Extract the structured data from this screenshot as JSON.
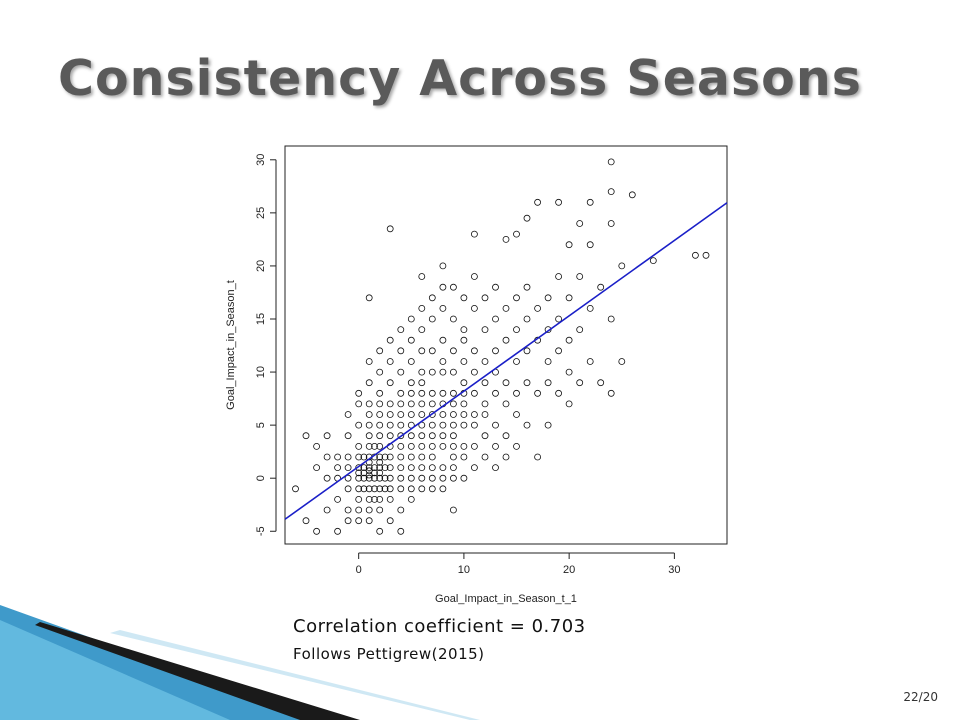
{
  "slide": {
    "title": "Consistency Across Seasons",
    "caption_correlation": "Correlation coefficient = 0.703",
    "caption_source": "Follows Pettigrew(2015)",
    "page_number": "22/20"
  },
  "colors": {
    "title": "#5a5a5a",
    "regression_line": "#1a1fc8",
    "points": "#111111",
    "decor_blue": "#2a8fc4",
    "decor_dark": "#1a1a1a"
  },
  "chart_data": {
    "type": "scatter",
    "xlabel": "Goal_Impact_in_Season_t_1",
    "ylabel": "Goal_Impact_in_Season_t",
    "xlim": [
      -7,
      35
    ],
    "ylim": [
      -6.2,
      31.3
    ],
    "xticks": [
      0,
      10,
      20,
      30
    ],
    "yticks": [
      -5,
      0,
      5,
      10,
      15,
      20,
      25,
      30
    ],
    "xtick_labels": [
      "0",
      "10",
      "20",
      "30"
    ],
    "ytick_labels": [
      "-5",
      "0",
      "5",
      "10",
      "15",
      "20",
      "25",
      "30"
    ],
    "regression": {
      "intercept": 1.1,
      "slope": 0.71
    },
    "marker": "open-circle",
    "grid": false,
    "points": [
      [
        -6,
        -1
      ],
      [
        -5,
        -4
      ],
      [
        -5,
        4
      ],
      [
        -4,
        -5
      ],
      [
        -4,
        1
      ],
      [
        -4,
        3
      ],
      [
        -3,
        -3
      ],
      [
        -3,
        0
      ],
      [
        -3,
        2
      ],
      [
        -3,
        4
      ],
      [
        -2,
        -5
      ],
      [
        -2,
        -2
      ],
      [
        -2,
        0
      ],
      [
        -2,
        1
      ],
      [
        -2,
        2
      ],
      [
        -1,
        -4
      ],
      [
        -1,
        -3
      ],
      [
        -1,
        -1
      ],
      [
        -1,
        0
      ],
      [
        -1,
        1
      ],
      [
        -1,
        2
      ],
      [
        -1,
        4
      ],
      [
        -1,
        6
      ],
      [
        0,
        -4
      ],
      [
        0,
        -3
      ],
      [
        0,
        -2
      ],
      [
        0,
        -1
      ],
      [
        0,
        0
      ],
      [
        0,
        0.5
      ],
      [
        0,
        1
      ],
      [
        0,
        2
      ],
      [
        0,
        3
      ],
      [
        0,
        5
      ],
      [
        0,
        7
      ],
      [
        0,
        8
      ],
      [
        0.5,
        -1
      ],
      [
        0.5,
        0
      ],
      [
        0.5,
        0.5
      ],
      [
        0.5,
        1
      ],
      [
        0.5,
        2
      ],
      [
        1,
        -4
      ],
      [
        1,
        -3
      ],
      [
        1,
        -2
      ],
      [
        1,
        -1
      ],
      [
        1,
        0
      ],
      [
        1,
        0.3
      ],
      [
        1,
        0.7
      ],
      [
        1,
        1
      ],
      [
        1,
        1.5
      ],
      [
        1,
        2
      ],
      [
        1,
        3
      ],
      [
        1,
        4
      ],
      [
        1,
        5
      ],
      [
        1,
        6
      ],
      [
        1,
        7
      ],
      [
        1,
        9
      ],
      [
        1,
        11
      ],
      [
        1,
        17
      ],
      [
        1.5,
        -2
      ],
      [
        1.5,
        -1
      ],
      [
        1.5,
        0
      ],
      [
        1.5,
        0.5
      ],
      [
        1.5,
        1
      ],
      [
        1.5,
        2
      ],
      [
        1.5,
        3
      ],
      [
        2,
        -5
      ],
      [
        2,
        -3
      ],
      [
        2,
        -2
      ],
      [
        2,
        -1
      ],
      [
        2,
        0
      ],
      [
        2,
        0.5
      ],
      [
        2,
        1
      ],
      [
        2,
        1.5
      ],
      [
        2,
        2
      ],
      [
        2,
        3
      ],
      [
        2,
        4
      ],
      [
        2,
        5
      ],
      [
        2,
        6
      ],
      [
        2,
        7
      ],
      [
        2,
        8
      ],
      [
        2,
        10
      ],
      [
        2,
        12
      ],
      [
        2.5,
        -1
      ],
      [
        2.5,
        0
      ],
      [
        2.5,
        1
      ],
      [
        2.5,
        2
      ],
      [
        3,
        -4
      ],
      [
        3,
        -2
      ],
      [
        3,
        -1
      ],
      [
        3,
        0
      ],
      [
        3,
        1
      ],
      [
        3,
        2
      ],
      [
        3,
        3
      ],
      [
        3,
        4
      ],
      [
        3,
        5
      ],
      [
        3,
        6
      ],
      [
        3,
        7
      ],
      [
        3,
        9
      ],
      [
        3,
        11
      ],
      [
        3,
        13
      ],
      [
        3,
        23.5
      ],
      [
        4,
        -5
      ],
      [
        4,
        -3
      ],
      [
        4,
        -1
      ],
      [
        4,
        0
      ],
      [
        4,
        1
      ],
      [
        4,
        2
      ],
      [
        4,
        3
      ],
      [
        4,
        4
      ],
      [
        4,
        5
      ],
      [
        4,
        6
      ],
      [
        4,
        7
      ],
      [
        4,
        8
      ],
      [
        4,
        10
      ],
      [
        4,
        12
      ],
      [
        4,
        14
      ],
      [
        5,
        -2
      ],
      [
        5,
        -1
      ],
      [
        5,
        0
      ],
      [
        5,
        1
      ],
      [
        5,
        2
      ],
      [
        5,
        3
      ],
      [
        5,
        4
      ],
      [
        5,
        5
      ],
      [
        5,
        6
      ],
      [
        5,
        7
      ],
      [
        5,
        8
      ],
      [
        5,
        9
      ],
      [
        5,
        11
      ],
      [
        5,
        13
      ],
      [
        5,
        15
      ],
      [
        6,
        -1
      ],
      [
        6,
        0
      ],
      [
        6,
        1
      ],
      [
        6,
        2
      ],
      [
        6,
        3
      ],
      [
        6,
        4
      ],
      [
        6,
        5
      ],
      [
        6,
        6
      ],
      [
        6,
        7
      ],
      [
        6,
        8
      ],
      [
        6,
        9
      ],
      [
        6,
        10
      ],
      [
        6,
        12
      ],
      [
        6,
        14
      ],
      [
        6,
        16
      ],
      [
        6,
        19
      ],
      [
        7,
        -1
      ],
      [
        7,
        0
      ],
      [
        7,
        1
      ],
      [
        7,
        2
      ],
      [
        7,
        3
      ],
      [
        7,
        4
      ],
      [
        7,
        5
      ],
      [
        7,
        6
      ],
      [
        7,
        7
      ],
      [
        7,
        8
      ],
      [
        7,
        10
      ],
      [
        7,
        12
      ],
      [
        7,
        15
      ],
      [
        7,
        17
      ],
      [
        8,
        -1
      ],
      [
        8,
        0
      ],
      [
        8,
        1
      ],
      [
        8,
        3
      ],
      [
        8,
        4
      ],
      [
        8,
        5
      ],
      [
        8,
        6
      ],
      [
        8,
        7
      ],
      [
        8,
        8
      ],
      [
        8,
        10
      ],
      [
        8,
        11
      ],
      [
        8,
        13
      ],
      [
        8,
        16
      ],
      [
        8,
        18
      ],
      [
        8,
        20
      ],
      [
        9,
        -3
      ],
      [
        9,
        0
      ],
      [
        9,
        1
      ],
      [
        9,
        2
      ],
      [
        9,
        3
      ],
      [
        9,
        4
      ],
      [
        9,
        5
      ],
      [
        9,
        6
      ],
      [
        9,
        7
      ],
      [
        9,
        8
      ],
      [
        9,
        10
      ],
      [
        9,
        12
      ],
      [
        9,
        15
      ],
      [
        9,
        18
      ],
      [
        10,
        0
      ],
      [
        10,
        2
      ],
      [
        10,
        3
      ],
      [
        10,
        5
      ],
      [
        10,
        6
      ],
      [
        10,
        7
      ],
      [
        10,
        8
      ],
      [
        10,
        9
      ],
      [
        10,
        11
      ],
      [
        10,
        13
      ],
      [
        10,
        14
      ],
      [
        10,
        17
      ],
      [
        11,
        1
      ],
      [
        11,
        3
      ],
      [
        11,
        5
      ],
      [
        11,
        6
      ],
      [
        11,
        8
      ],
      [
        11,
        10
      ],
      [
        11,
        12
      ],
      [
        11,
        16
      ],
      [
        11,
        19
      ],
      [
        11,
        23
      ],
      [
        12,
        2
      ],
      [
        12,
        4
      ],
      [
        12,
        6
      ],
      [
        12,
        7
      ],
      [
        12,
        9
      ],
      [
        12,
        11
      ],
      [
        12,
        14
      ],
      [
        12,
        17
      ],
      [
        13,
        1
      ],
      [
        13,
        3
      ],
      [
        13,
        5
      ],
      [
        13,
        8
      ],
      [
        13,
        10
      ],
      [
        13,
        12
      ],
      [
        13,
        15
      ],
      [
        13,
        18
      ],
      [
        14,
        2
      ],
      [
        14,
        4
      ],
      [
        14,
        7
      ],
      [
        14,
        9
      ],
      [
        14,
        13
      ],
      [
        14,
        16
      ],
      [
        14,
        22.5
      ],
      [
        15,
        3
      ],
      [
        15,
        6
      ],
      [
        15,
        8
      ],
      [
        15,
        11
      ],
      [
        15,
        14
      ],
      [
        15,
        17
      ],
      [
        15,
        23
      ],
      [
        16,
        5
      ],
      [
        16,
        9
      ],
      [
        16,
        12
      ],
      [
        16,
        15
      ],
      [
        16,
        18
      ],
      [
        16,
        24.5
      ],
      [
        17,
        2
      ],
      [
        17,
        8
      ],
      [
        17,
        13
      ],
      [
        17,
        16
      ],
      [
        17,
        26
      ],
      [
        18,
        5
      ],
      [
        18,
        9
      ],
      [
        18,
        11
      ],
      [
        18,
        14
      ],
      [
        18,
        17
      ],
      [
        19,
        8
      ],
      [
        19,
        12
      ],
      [
        19,
        15
      ],
      [
        19,
        19
      ],
      [
        19,
        26
      ],
      [
        20,
        7
      ],
      [
        20,
        10
      ],
      [
        20,
        13
      ],
      [
        20,
        17
      ],
      [
        20,
        22
      ],
      [
        21,
        9
      ],
      [
        21,
        14
      ],
      [
        21,
        19
      ],
      [
        21,
        24
      ],
      [
        22,
        11
      ],
      [
        22,
        16
      ],
      [
        22,
        22
      ],
      [
        22,
        26
      ],
      [
        23,
        9
      ],
      [
        23,
        18
      ],
      [
        24,
        8
      ],
      [
        24,
        15
      ],
      [
        24,
        24
      ],
      [
        24,
        27
      ],
      [
        24,
        29.8
      ],
      [
        25,
        11
      ],
      [
        25,
        20
      ],
      [
        26,
        26.7
      ],
      [
        28,
        20.5
      ],
      [
        32,
        21
      ],
      [
        33,
        21
      ]
    ]
  }
}
